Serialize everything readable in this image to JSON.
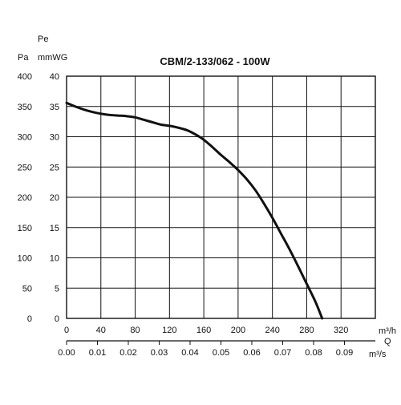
{
  "chart_data": {
    "type": "line",
    "title": "CBM/2-133/062 - 100W",
    "y_header": "Pe",
    "y_left_unit": "Pa",
    "y_right_unit": "mmWG",
    "x_top_unit": "m³/h",
    "x_bottom_label": "Q",
    "x_bottom_unit": "m³/s",
    "x_top_ticks": [
      "0",
      "40",
      "80",
      "120",
      "160",
      "200",
      "240",
      "280",
      "320"
    ],
    "x_bottom_ticks": [
      "0.00",
      "0.01",
      "0.02",
      "0.03",
      "0.04",
      "0.05",
      "0.06",
      "0.07",
      "0.08",
      "0.09"
    ],
    "y_pa_ticks": [
      "0",
      "50",
      "100",
      "150",
      "200",
      "250",
      "300",
      "350",
      "400"
    ],
    "y_mmwg_ticks": [
      "0",
      "5",
      "10",
      "15",
      "20",
      "25",
      "30",
      "35",
      "40"
    ],
    "xlim": [
      0,
      360
    ],
    "ylim": [
      0,
      400
    ],
    "grid": true,
    "series": [
      {
        "x": [
          0,
          10,
          20,
          30,
          40,
          50,
          60,
          70,
          80,
          90,
          100,
          110,
          120,
          130,
          140,
          150,
          160,
          170,
          180,
          190,
          200,
          210,
          220,
          230,
          240,
          250,
          260,
          270,
          280,
          290,
          298
        ],
        "y": [
          356,
          350,
          345,
          341,
          338,
          336,
          335,
          334,
          332,
          328,
          324,
          320,
          318,
          315,
          311,
          304,
          295,
          283,
          270,
          258,
          245,
          230,
          212,
          190,
          166,
          140,
          114,
          86,
          57,
          28,
          0
        ]
      }
    ]
  }
}
